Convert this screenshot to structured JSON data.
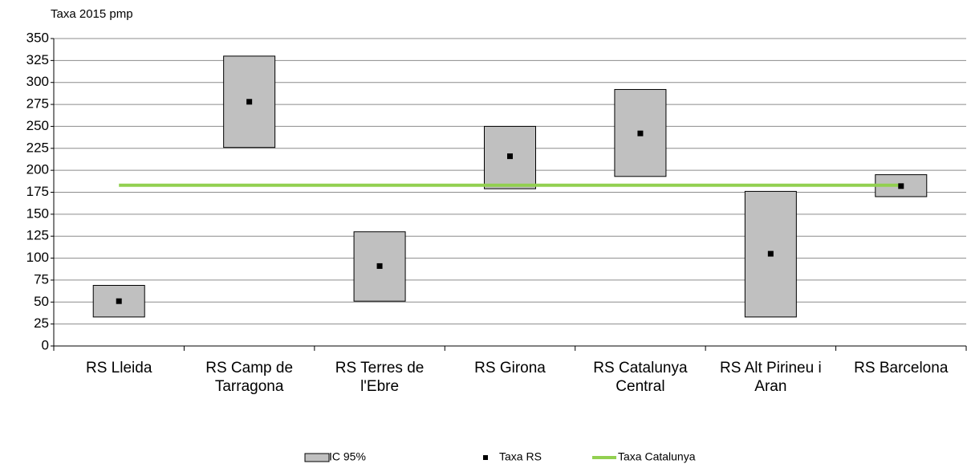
{
  "chart_data": {
    "type": "range",
    "y_axis_label": "Taxa 2015 pmp",
    "categories": [
      "RS Lleida",
      "RS Camp de Tarragona",
      "RS Terres de l'Ebre",
      "RS Girona",
      "RS Catalunya Central",
      "RS Alt Pirineu i Aran",
      "RS Barcelona"
    ],
    "series": [
      {
        "name": "IC 95%",
        "color": "#c0c0c0",
        "low": [
          33,
          226,
          51,
          179,
          193,
          33,
          170
        ],
        "high": [
          69,
          330,
          130,
          250,
          292,
          176,
          195
        ]
      },
      {
        "name": "Taxa RS",
        "color": "#000000",
        "values": [
          51,
          278,
          91,
          216,
          242,
          105,
          182
        ]
      },
      {
        "name": "Taxa Catalunya",
        "color": "#92d050",
        "values": [
          183,
          183,
          183,
          183,
          183,
          183,
          183
        ]
      }
    ],
    "ylim": [
      0,
      350
    ],
    "yticks": [
      0,
      25,
      50,
      75,
      100,
      125,
      150,
      175,
      200,
      225,
      250,
      275,
      300,
      325,
      350
    ],
    "grid": true
  }
}
